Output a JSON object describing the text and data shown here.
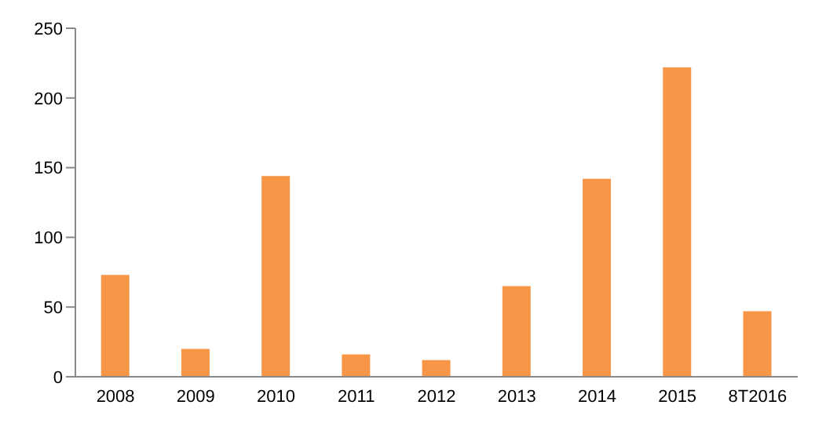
{
  "chart_data": {
    "type": "bar",
    "categories": [
      "2008",
      "2009",
      "2010",
      "2011",
      "2012",
      "2013",
      "2014",
      "2015",
      "8T2016"
    ],
    "values": [
      73,
      20,
      144,
      16,
      12,
      65,
      142,
      222,
      47
    ],
    "color": "#f79646",
    "ylim": [
      0,
      250
    ],
    "yticks": [
      0,
      50,
      100,
      150,
      200,
      250
    ],
    "grid": false
  }
}
